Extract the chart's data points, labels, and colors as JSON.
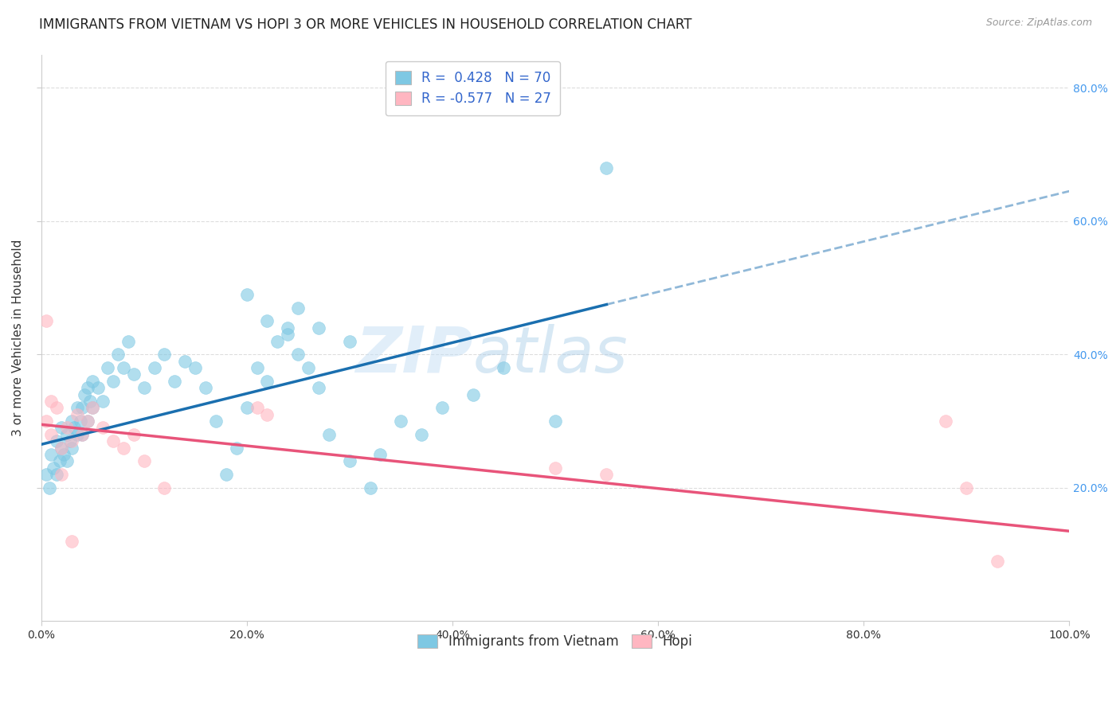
{
  "title": "IMMIGRANTS FROM VIETNAM VS HOPI 3 OR MORE VEHICLES IN HOUSEHOLD CORRELATION CHART",
  "source": "Source: ZipAtlas.com",
  "ylabel": "3 or more Vehicles in Household",
  "xlim": [
    0.0,
    1.0
  ],
  "ylim": [
    0.0,
    0.85
  ],
  "xtick_labels": [
    "0.0%",
    "20.0%",
    "40.0%",
    "60.0%",
    "80.0%",
    "100.0%"
  ],
  "xtick_vals": [
    0.0,
    0.2,
    0.4,
    0.6,
    0.8,
    1.0
  ],
  "ytick_vals": [
    0.2,
    0.4,
    0.6,
    0.8
  ],
  "ytick_labels_right": [
    "20.0%",
    "40.0%",
    "60.0%",
    "80.0%"
  ],
  "legend1_r": "R =  0.428",
  "legend1_n": "N = 70",
  "legend2_r": "R = -0.577",
  "legend2_n": "N = 27",
  "color_blue": "#7ec8e3",
  "color_pink": "#ffb6c1",
  "color_line_blue": "#1a6faf",
  "color_line_pink": "#e8547a",
  "color_line_dashed": "#90b8d8",
  "watermark_zip": "ZIP",
  "watermark_atlas": "atlas",
  "blue_line_x0": 0.0,
  "blue_line_y0": 0.265,
  "blue_line_x1": 0.55,
  "blue_line_y1": 0.475,
  "dash_line_x0": 0.55,
  "dash_line_y0": 0.475,
  "dash_line_x1": 1.0,
  "dash_line_y1": 0.645,
  "pink_line_x0": 0.0,
  "pink_line_y0": 0.295,
  "pink_line_x1": 1.0,
  "pink_line_y1": 0.135,
  "scatter_blue_x": [
    0.005,
    0.008,
    0.01,
    0.012,
    0.015,
    0.015,
    0.018,
    0.02,
    0.02,
    0.022,
    0.025,
    0.025,
    0.028,
    0.03,
    0.03,
    0.032,
    0.035,
    0.035,
    0.038,
    0.04,
    0.04,
    0.042,
    0.045,
    0.045,
    0.048,
    0.05,
    0.05,
    0.055,
    0.06,
    0.065,
    0.07,
    0.075,
    0.08,
    0.085,
    0.09,
    0.1,
    0.11,
    0.12,
    0.13,
    0.14,
    0.15,
    0.16,
    0.17,
    0.18,
    0.19,
    0.2,
    0.21,
    0.22,
    0.23,
    0.24,
    0.25,
    0.26,
    0.27,
    0.28,
    0.3,
    0.32,
    0.33,
    0.35,
    0.37,
    0.39,
    0.42,
    0.45,
    0.5,
    0.55,
    0.2,
    0.22,
    0.24,
    0.25,
    0.27,
    0.3
  ],
  "scatter_blue_y": [
    0.22,
    0.2,
    0.25,
    0.23,
    0.27,
    0.22,
    0.24,
    0.26,
    0.29,
    0.25,
    0.28,
    0.24,
    0.27,
    0.3,
    0.26,
    0.29,
    0.28,
    0.32,
    0.3,
    0.28,
    0.32,
    0.34,
    0.3,
    0.35,
    0.33,
    0.32,
    0.36,
    0.35,
    0.33,
    0.38,
    0.36,
    0.4,
    0.38,
    0.42,
    0.37,
    0.35,
    0.38,
    0.4,
    0.36,
    0.39,
    0.38,
    0.35,
    0.3,
    0.22,
    0.26,
    0.32,
    0.38,
    0.36,
    0.42,
    0.44,
    0.4,
    0.38,
    0.35,
    0.28,
    0.24,
    0.2,
    0.25,
    0.3,
    0.28,
    0.32,
    0.34,
    0.38,
    0.3,
    0.68,
    0.49,
    0.45,
    0.43,
    0.47,
    0.44,
    0.42
  ],
  "scatter_pink_x": [
    0.005,
    0.01,
    0.015,
    0.02,
    0.025,
    0.03,
    0.035,
    0.04,
    0.045,
    0.05,
    0.06,
    0.07,
    0.08,
    0.09,
    0.1,
    0.12,
    0.005,
    0.01,
    0.02,
    0.03,
    0.21,
    0.22,
    0.5,
    0.55,
    0.88,
    0.9,
    0.93
  ],
  "scatter_pink_y": [
    0.3,
    0.28,
    0.32,
    0.26,
    0.29,
    0.27,
    0.31,
    0.28,
    0.3,
    0.32,
    0.29,
    0.27,
    0.26,
    0.28,
    0.24,
    0.2,
    0.45,
    0.33,
    0.22,
    0.12,
    0.32,
    0.31,
    0.23,
    0.22,
    0.3,
    0.2,
    0.09
  ],
  "title_fontsize": 12,
  "axis_label_fontsize": 11,
  "tick_fontsize": 10,
  "legend_fontsize": 12,
  "background_color": "#ffffff",
  "grid_color": "#dddddd"
}
